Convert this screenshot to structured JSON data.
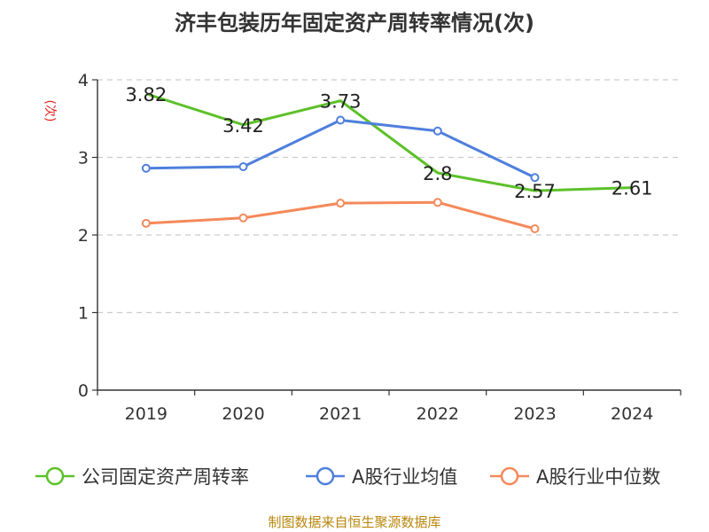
{
  "chart_data": {
    "type": "line",
    "title": "济丰包装历年固定资产周转率情况(次)",
    "ylabel": "(次)",
    "xlabel": "",
    "categories": [
      "2019",
      "2020",
      "2021",
      "2022",
      "2023",
      "2024"
    ],
    "ylim": [
      0,
      4
    ],
    "yticks": [
      0,
      1,
      2,
      3,
      4
    ],
    "grid": true,
    "legend_position": "bottom",
    "series": [
      {
        "name": "公司固定资产周转率",
        "color": "#5cc12a",
        "values": [
          3.82,
          3.42,
          3.73,
          2.8,
          2.57,
          2.61
        ],
        "labels": [
          "3.82",
          "3.42",
          "3.73",
          "2.8",
          "2.57",
          "2.61"
        ],
        "show_markers": false
      },
      {
        "name": "A股行业均值",
        "color": "#4f7fdd",
        "values": [
          2.86,
          2.88,
          3.48,
          3.34,
          2.74,
          null
        ],
        "show_markers": true
      },
      {
        "name": "A股行业中位数",
        "color": "#f5895a",
        "values": [
          2.15,
          2.22,
          2.41,
          2.42,
          2.08,
          null
        ],
        "show_markers": true
      }
    ],
    "source": "制图数据来自恒生聚源数据库"
  }
}
